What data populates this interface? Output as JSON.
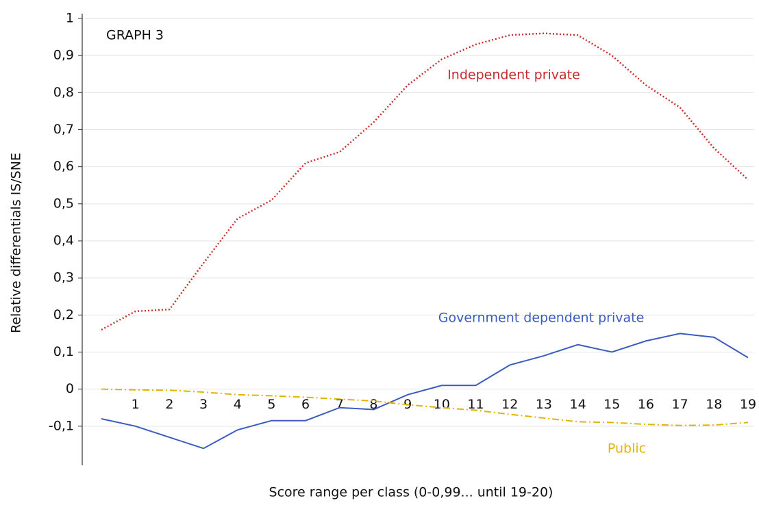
{
  "chart_data": {
    "type": "line",
    "annotation": "GRAPH 3",
    "x_label": "Score range per class (0-0,99... until 19-20)",
    "y_label": "Relative differentials IS/SNE",
    "x": [
      0,
      1,
      2,
      3,
      4,
      5,
      6,
      7,
      8,
      9,
      10,
      11,
      12,
      13,
      14,
      15,
      16,
      17,
      18,
      19
    ],
    "xlim": [
      0,
      19
    ],
    "xticks": [
      1,
      2,
      3,
      4,
      5,
      6,
      7,
      8,
      9,
      10,
      11,
      12,
      13,
      14,
      15,
      16,
      17,
      18,
      19
    ],
    "ylim": [
      -0.2,
      1
    ],
    "yticks": [
      {
        "value": -0.1,
        "label": "-0,1"
      },
      0,
      {
        "value": 0.1,
        "label": "0,1"
      },
      {
        "value": 0.2,
        "label": "0,2"
      },
      {
        "value": 0.3,
        "label": "0,3"
      },
      {
        "value": 0.4,
        "label": "0,4"
      },
      {
        "value": 0.5,
        "label": "0,5"
      },
      {
        "value": 0.6,
        "label": "0,6"
      },
      {
        "value": 0.7,
        "label": "0,7"
      },
      {
        "value": 0.8,
        "label": "0,8"
      },
      {
        "value": 0.9,
        "label": "0,9"
      },
      1
    ],
    "grid": true,
    "series": [
      {
        "name": "Independent private",
        "color": "#cc2a2a",
        "style": "dotted",
        "values": [
          0.16,
          0.21,
          0.215,
          0.34,
          0.46,
          0.51,
          0.61,
          0.64,
          0.72,
          0.82,
          0.89,
          0.93,
          0.955,
          0.96,
          0.955,
          0.9,
          0.82,
          0.76,
          0.65,
          0.565
        ]
      },
      {
        "name": "Government dependent private",
        "color": "#3a5cc0",
        "style": "solid",
        "values": [
          -0.08,
          -0.1,
          -0.13,
          -0.16,
          -0.11,
          -0.085,
          -0.085,
          -0.05,
          -0.055,
          -0.015,
          0.01,
          0.01,
          0.065,
          0.09,
          0.12,
          0.1,
          0.13,
          0.15,
          0.14,
          0.085
        ]
      },
      {
        "name": "Public",
        "color": "#e0b400",
        "style": "dashdot",
        "values": [
          0,
          -0.002,
          -0.003,
          -0.008,
          -0.015,
          -0.018,
          -0.022,
          -0.027,
          -0.032,
          -0.042,
          -0.05,
          -0.057,
          -0.068,
          -0.078,
          -0.088,
          -0.09,
          -0.095,
          -0.098,
          -0.097,
          -0.09
        ]
      }
    ]
  }
}
